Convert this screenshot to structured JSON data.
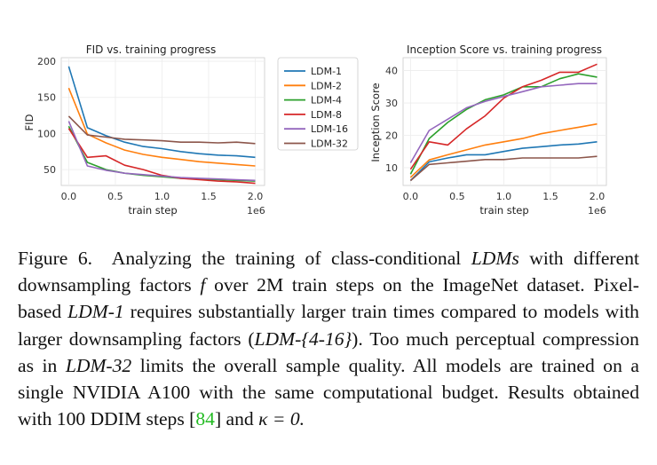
{
  "chart_data": [
    {
      "type": "line",
      "title": "FID vs. training progress",
      "xlabel": "train step",
      "x_offset_label": "1e6",
      "ylabel": "FID",
      "xlim": [
        -0.08,
        2.1
      ],
      "ylim": [
        28,
        205
      ],
      "xticks": [
        "0.0",
        "0.5",
        "1.0",
        "1.5",
        "2.0"
      ],
      "xtick_values": [
        0.0,
        0.5,
        1.0,
        1.5,
        2.0
      ],
      "yticks": [
        "50",
        "100",
        "150",
        "200"
      ],
      "ytick_values": [
        50,
        100,
        150,
        200
      ],
      "grid": true,
      "x": [
        0.0,
        0.2,
        0.4,
        0.6,
        0.8,
        1.0,
        1.2,
        1.4,
        1.6,
        1.8,
        2.0
      ],
      "series": [
        {
          "name": "LDM-1",
          "color": "#1f77b4",
          "values": [
            193,
            108,
            97,
            88,
            82,
            79,
            75,
            72,
            70,
            69,
            67
          ]
        },
        {
          "name": "LDM-2",
          "color": "#ff7f0e",
          "values": [
            163,
            99,
            87,
            77,
            71,
            67,
            64,
            61,
            59,
            57,
            55
          ]
        },
        {
          "name": "LDM-4",
          "color": "#2ca02c",
          "values": [
            110,
            60,
            50,
            45,
            42,
            40,
            38,
            37,
            36,
            35,
            34
          ]
        },
        {
          "name": "LDM-8",
          "color": "#d62728",
          "values": [
            107,
            67,
            69,
            56,
            50,
            42,
            38,
            36,
            34,
            33,
            31
          ]
        },
        {
          "name": "LDM-16",
          "color": "#9467bd",
          "values": [
            117,
            55,
            49,
            45,
            43,
            41,
            39,
            38,
            37,
            36,
            35
          ]
        },
        {
          "name": "LDM-32",
          "color": "#8c564b",
          "values": [
            124,
            98,
            95,
            92,
            91,
            90,
            88,
            88,
            87,
            88,
            86
          ]
        }
      ]
    },
    {
      "type": "line",
      "title": "Inception Score vs. training progress",
      "xlabel": "train step",
      "x_offset_label": "1e6",
      "ylabel": "Inception Score",
      "xlim": [
        -0.08,
        2.1
      ],
      "ylim": [
        4.5,
        44
      ],
      "xticks": [
        "0.0",
        "0.5",
        "1.0",
        "1.5",
        "2.0"
      ],
      "xtick_values": [
        0.0,
        0.5,
        1.0,
        1.5,
        2.0
      ],
      "yticks": [
        "10",
        "20",
        "30",
        "40"
      ],
      "ytick_values": [
        10,
        20,
        30,
        40
      ],
      "grid": true,
      "x": [
        0.0,
        0.2,
        0.4,
        0.6,
        0.8,
        1.0,
        1.2,
        1.4,
        1.6,
        1.8,
        2.0
      ],
      "series": [
        {
          "name": "LDM-1",
          "color": "#1f77b4",
          "values": [
            6.0,
            11.8,
            13.0,
            14.0,
            14.0,
            15.0,
            16.0,
            16.5,
            17.0,
            17.3,
            18.0
          ]
        },
        {
          "name": "LDM-2",
          "color": "#ff7f0e",
          "values": [
            7.0,
            12.4,
            14.0,
            15.5,
            17.0,
            18.0,
            19.0,
            20.5,
            21.5,
            22.5,
            23.5
          ]
        },
        {
          "name": "LDM-4",
          "color": "#2ca02c",
          "values": [
            8.0,
            19.0,
            24.0,
            28.0,
            31.0,
            32.5,
            35.0,
            35.0,
            37.5,
            39.0,
            38.0
          ]
        },
        {
          "name": "LDM-8",
          "color": "#d62728",
          "values": [
            9.5,
            18.0,
            17.0,
            22.0,
            26.0,
            31.5,
            35.0,
            37.0,
            39.5,
            39.5,
            42.0
          ]
        },
        {
          "name": "LDM-16",
          "color": "#9467bd",
          "values": [
            11.5,
            21.5,
            25.0,
            28.5,
            30.5,
            32.0,
            33.5,
            35.0,
            35.5,
            36.0,
            36.0
          ]
        },
        {
          "name": "LDM-32",
          "color": "#8c564b",
          "values": [
            6.0,
            11.0,
            11.5,
            12.0,
            12.5,
            12.5,
            13.0,
            13.0,
            13.0,
            13.0,
            13.5
          ]
        }
      ]
    }
  ],
  "caption": {
    "fig_label": "Figure 6.",
    "t1": "Analyzing the training of class-conditional",
    "ldms": "LDMs",
    "t2": "with different downsampling factors",
    "f": "f",
    "t3": "over 2M train steps on the ImageNet dataset. Pixel-based",
    "ldm1": "LDM-1",
    "t4": "requires substantially larger train times compared to models with larger downsampling factors (",
    "ldm_range": "LDM-{4-16}",
    "t5": "). Too much perceptual compression as in",
    "ldm32": "LDM-32",
    "t6": "limits the overall sample quality. All models are trained on a single NVIDIA A100 with the same computational budget. Results obtained with 100 DDIM steps [",
    "cite": "84",
    "t7": "] and",
    "kappa": "κ = 0."
  }
}
